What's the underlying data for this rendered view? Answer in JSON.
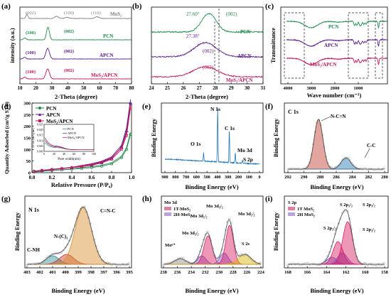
{
  "colors": {
    "mos2": "#808080",
    "pcn": "#1f8a4c",
    "apcn": "#5b1a8f",
    "mos2apcn": "#c2185b",
    "blue": "#1f77b4",
    "red": "#c0392b",
    "teal": "#2e8b9a",
    "orange": "#d98c2b",
    "purple": "#7e57c2",
    "pink": "#d81b60",
    "yellow": "#d4b400",
    "gray": "#8c8c8c",
    "olive": "#9aa83a"
  },
  "panels": {
    "a": {
      "letter": "(a)",
      "xlabel": "2-Theta (degree)",
      "ylabel": "intensity (a.u.)",
      "xticks": [
        "10",
        "20",
        "30",
        "40",
        "50",
        "60",
        "70",
        "80"
      ],
      "curve_labels": [
        "MoS₂",
        "PCN",
        "APCN",
        "MoS₂/APCN"
      ],
      "peak_labels_top": [
        "(002)",
        "(100)",
        "(110)"
      ],
      "peak_labels": [
        "(100)",
        "(002)"
      ]
    },
    "b": {
      "letter": "(b)",
      "xlabel": "2-Theta (degree)",
      "xticks": [
        "24",
        "25",
        "26",
        "27",
        "28",
        "29",
        "30",
        "31"
      ],
      "curve_labels": [
        "PCN",
        "APCN",
        "MoS₂/APCN"
      ],
      "peak_label": "(002)",
      "angle1": "27.60°",
      "angle2": "27.38°"
    },
    "c": {
      "letter": "(c)",
      "xlabel": "Wave number (cm⁻¹)",
      "ylabel": "Transmittance",
      "xticks": [
        "4000",
        "3000",
        "2000",
        "1000"
      ],
      "curve_labels": [
        "PCN",
        "APCN",
        "MoS₂/APCN"
      ]
    },
    "d": {
      "letter": "(d)",
      "xlabel": "Relative Pressure (P/P₀)",
      "ylabel": "Quantity Adsorbed (cm³/g STP)",
      "xticks": [
        "0.0",
        "0.2",
        "0.4",
        "0.6",
        "0.8",
        "1.0"
      ],
      "yticks": [
        "0",
        "50",
        "100",
        "150",
        "200",
        "250",
        "300"
      ],
      "legend": [
        "PCN",
        "APCN",
        "MoS₂/APCN"
      ],
      "inset_xlabel": "Pore width(nm)",
      "inset_ylabel": "dV/dw (cm³/g·nm)",
      "inset_xticks": [
        "0",
        "20",
        "40",
        "60",
        "80",
        "100"
      ],
      "inset_yticks": [
        "0.000",
        "0.005",
        "0.010",
        "0.015",
        "0.020",
        "0.025"
      ],
      "inset_legend": [
        "PCN",
        "APCN",
        "MoS₂/APCN"
      ]
    },
    "e": {
      "letter": "(e)",
      "xlabel": "Binding Energy (eV)",
      "ylabel": "Binding Energy",
      "xticks": [
        "900",
        "800",
        "700",
        "600",
        "500",
        "400",
        "300",
        "200",
        "100",
        "0"
      ],
      "peaks": [
        "N 1s",
        "C 1s",
        "O 1s",
        "Mo 3d",
        "S 2p"
      ]
    },
    "f": {
      "letter": "(f)",
      "xlabel": "Binding Energy (eV)",
      "ylabel": "Binding Energy",
      "xticks": [
        "292",
        "290",
        "288",
        "286",
        "284",
        "282",
        "280"
      ],
      "title": "C 1s",
      "peaks": [
        "N-C=N",
        "C-C"
      ]
    },
    "g": {
      "letter": "(g)",
      "xlabel": "Binding Energy (eV)",
      "ylabel": "Binding Energy",
      "xticks": [
        "403",
        "402",
        "401",
        "400",
        "399",
        "398",
        "397",
        "396",
        "395"
      ],
      "title": "N 1s",
      "peaks": [
        "C=N-C",
        "N-(C)₃",
        "C-NH"
      ]
    },
    "h": {
      "letter": "(h)",
      "xlabel": "Binding Energy (eV)",
      "xticks": [
        "238",
        "236",
        "234",
        "232",
        "230",
        "228",
        "226",
        "224"
      ],
      "legend_title": "Mo 3d",
      "legend": [
        "1T-MoS₂",
        "2H-MoS₂"
      ],
      "peaks": [
        "Mo 3d₃/₂",
        "Mo 3d₅/₂",
        "Mo 3d₅/₂",
        "Mo 3d₃/₂",
        "Mo⁶⁺",
        "S 2s"
      ]
    },
    "i": {
      "letter": "(i)",
      "xlabel": "Binding Energy (eV)",
      "ylabel": "Binding Energy",
      "xticks": [
        "168",
        "166",
        "164",
        "162",
        "160",
        "158"
      ],
      "legend_title": "S 2p",
      "legend": [
        "1T MoS₂",
        "2H MoS₂"
      ],
      "peaks": [
        "S 2p₁/₂",
        "S 2p₃/₂",
        "S 2p₁/₂",
        "S 2p₃/₂"
      ]
    }
  },
  "chart_data": [
    {
      "panel": "a",
      "type": "line",
      "title": "",
      "xlabel": "2-Theta (degree)",
      "ylabel": "intensity (a.u.)",
      "xlim": [
        10,
        80
      ],
      "series": [
        {
          "name": "MoS₂",
          "peaks": [
            14.4,
            33,
            58.3
          ]
        },
        {
          "name": "PCN",
          "peaks": [
            13.0,
            27.6
          ]
        },
        {
          "name": "APCN",
          "peaks": [
            13.0,
            27.4
          ]
        },
        {
          "name": "MoS₂/APCN",
          "peaks": [
            13.0,
            27.4
          ]
        }
      ]
    },
    {
      "panel": "b",
      "type": "line",
      "xlabel": "2-Theta (degree)",
      "xlim": [
        24,
        31
      ],
      "series": [
        {
          "name": "PCN",
          "peak": 27.6
        },
        {
          "name": "APCN",
          "peak": 27.38
        },
        {
          "name": "MoS₂/APCN",
          "peak": 27.38
        }
      ]
    },
    {
      "panel": "d",
      "type": "line",
      "xlabel": "Relative Pressure (P/P₀)",
      "ylabel": "Quantity Adsorbed (cm³/g STP)",
      "xlim": [
        0,
        1
      ],
      "ylim": [
        0,
        300
      ],
      "x": [
        0.02,
        0.1,
        0.2,
        0.3,
        0.4,
        0.5,
        0.6,
        0.7,
        0.8,
        0.9,
        0.95,
        0.99
      ],
      "series": [
        {
          "name": "PCN",
          "values": [
            3,
            6,
            9,
            12,
            15,
            18,
            22,
            28,
            38,
            65,
            100,
            165
          ]
        },
        {
          "name": "APCN",
          "values": [
            6,
            10,
            14,
            18,
            22,
            27,
            34,
            44,
            62,
            110,
            180,
            300
          ]
        },
        {
          "name": "MoS₂/APCN",
          "values": [
            5,
            9,
            13,
            17,
            21,
            26,
            32,
            42,
            58,
            100,
            160,
            280
          ]
        }
      ]
    }
  ]
}
